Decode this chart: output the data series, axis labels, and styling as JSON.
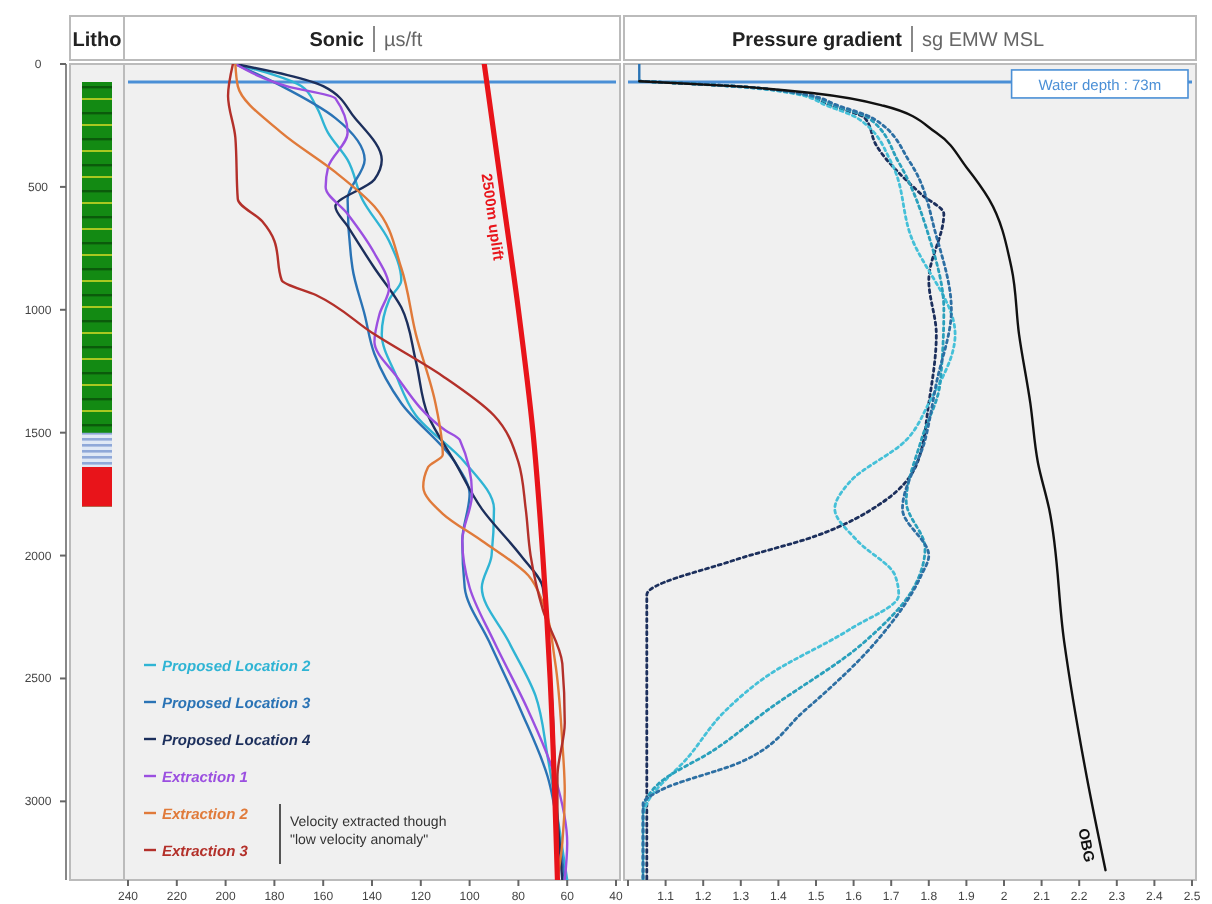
{
  "chart_data": [
    {
      "type": "other",
      "title": "Litho"
    },
    {
      "type": "line",
      "title": "Sonic",
      "xlabel": "µs/ft",
      "xlim": [
        240,
        40
      ],
      "xticks": [
        240,
        220,
        200,
        180,
        160,
        140,
        120,
        100,
        80,
        60,
        40
      ],
      "ylim": [
        3320,
        0
      ],
      "yticks": [
        0,
        500,
        1000,
        1500,
        2000,
        2500,
        3000
      ],
      "grid": false,
      "legend": "bottom left",
      "line_style": "solid",
      "marker": "none",
      "ref_lines": [
        {
          "axis": "y",
          "value": 73,
          "color": "#4a8fd6"
        }
      ],
      "annotations": [
        "Velocity extracted though\n\"low velocity anomaly\""
      ],
      "series": [
        {
          "name": "Proposed Location 2",
          "color": "#2fb4d4",
          "values": [
            0,
            90,
            170,
            280,
            390,
            550,
            720,
            880,
            960,
            1100,
            1270,
            1430,
            1620,
            1810,
            2000,
            2130,
            2350,
            2570,
            2820,
            3060,
            3320
          ],
          "x": [
            196,
            169,
            163,
            158,
            150,
            144,
            133,
            128,
            133,
            136,
            130,
            122,
            102,
            90,
            91,
            95,
            84,
            73,
            68,
            64,
            60
          ]
        },
        {
          "name": "Proposed Location 3",
          "color": "#2a73b5",
          "values": [
            0,
            90,
            220,
            390,
            550,
            830,
            1020,
            1180,
            1380,
            1620,
            1750,
            1940,
            2130,
            2350,
            2630,
            2900,
            3170,
            3320
          ],
          "x": [
            196,
            177,
            155,
            143,
            150,
            148,
            143,
            139,
            128,
            106,
            100,
            103,
            102,
            92,
            79,
            68,
            63,
            61
          ]
        },
        {
          "name": "Proposed Location 4",
          "color": "#1c2f5c",
          "values": [
            0,
            90,
            220,
            390,
            470,
            580,
            660,
            830,
            990,
            1210,
            1430,
            1620,
            1810,
            2000,
            2130,
            2350,
            2630,
            2900,
            3320
          ],
          "x": [
            196,
            160,
            147,
            136,
            139,
            155,
            150,
            139,
            128,
            122,
            117,
            106,
            95,
            79,
            70,
            68,
            66,
            65,
            62
          ]
        },
        {
          "name": "Extraction 1",
          "color": "#9b4fe0",
          "values": [
            0,
            90,
            140,
            280,
            420,
            500,
            610,
            770,
            910,
            1020,
            1130,
            1270,
            1490,
            1530,
            1750,
            1940,
            2130,
            2350,
            2630,
            2900,
            3170,
            3320
          ],
          "x": [
            196,
            175,
            155,
            150,
            158,
            159,
            150,
            139,
            133,
            137,
            139,
            130,
            110,
            104,
            99,
            103,
            100,
            90,
            76,
            65,
            60,
            61
          ]
        },
        {
          "name": "Extraction 2",
          "color": "#e07a3a",
          "values": [
            0,
            90,
            280,
            440,
            580,
            830,
            1100,
            1380,
            1590,
            1640,
            1720,
            1830,
            1940,
            2080,
            2190,
            2430,
            2760,
            2960,
            3170,
            3320
          ],
          "x": [
            196,
            195,
            177,
            155,
            139,
            128,
            122,
            114,
            111,
            117,
            119,
            111,
            95,
            76,
            70,
            65,
            62,
            61,
            62,
            64
          ]
        },
        {
          "name": "Extraction 3",
          "color": "#b3302a",
          "values": [
            0,
            130,
            300,
            550,
            640,
            720,
            880,
            940,
            1100,
            1270,
            1430,
            1620,
            1810,
            2000,
            2220,
            2440,
            2680,
            2900,
            3320
          ],
          "x": [
            197,
            199,
            196,
            195,
            185,
            180,
            177,
            163,
            139,
            111,
            90,
            80,
            77,
            75,
            70,
            62,
            61,
            64,
            64
          ]
        },
        {
          "name": "2500m uplift",
          "color": "#e8141a",
          "values": [
            0,
            500,
            1000,
            1500,
            2000,
            2500,
            3000,
            3320
          ],
          "x": [
            94,
            87,
            80,
            74,
            70,
            67,
            65,
            64
          ]
        }
      ]
    },
    {
      "type": "line",
      "title": "Pressure gradient",
      "xlabel": "sg EMW MSL",
      "xlim": [
        1.0,
        2.5
      ],
      "xticks": [
        {
          "value": 1.0,
          "label": null
        },
        1.1,
        1.2,
        1.3,
        1.4,
        1.5,
        1.6,
        1.7,
        1.8,
        1.9,
        2.0,
        2.1,
        2.2,
        2.3,
        2.4,
        2.5
      ],
      "ylim": [
        3320,
        0
      ],
      "tick_labels": "x",
      "grid": false,
      "legend": false,
      "marker": "none",
      "ref_lines": [
        {
          "axis": "y",
          "value": 73,
          "label": "Water depth : 73m",
          "color": "#4a8fd6"
        }
      ],
      "series": [
        {
          "color": "#2a73b5",
          "line_style": "solid",
          "values": [
            0,
            70
          ],
          "x": [
            1.03,
            1.03
          ]
        },
        {
          "color": "#1c2f5c",
          "line_style": "dotted",
          "values": [
            70,
            90,
            120,
            170,
            220,
            330,
            530,
            610,
            880,
            1100,
            1380,
            1620,
            1780,
            1920,
            2020,
            2160,
            3320
          ],
          "x": [
            1.03,
            1.28,
            1.45,
            1.54,
            1.63,
            1.66,
            1.78,
            1.84,
            1.8,
            1.82,
            1.8,
            1.77,
            1.68,
            1.5,
            1.28,
            1.05,
            1.05
          ]
        },
        {
          "color": "#45c0d8",
          "line_style": "dotted",
          "values": [
            70,
            90,
            120,
            170,
            220,
            400,
            690,
            1100,
            1380,
            1530,
            1700,
            1810,
            1940,
            2080,
            2160,
            2300,
            2490,
            2630,
            2820,
            3010,
            3060,
            3320
          ],
          "x": [
            1.03,
            1.27,
            1.44,
            1.53,
            1.61,
            1.7,
            1.75,
            1.87,
            1.8,
            1.74,
            1.59,
            1.55,
            1.61,
            1.71,
            1.72,
            1.59,
            1.37,
            1.26,
            1.16,
            1.05,
            1.04,
            1.04
          ]
        },
        {
          "color": "#2aa0bc",
          "line_style": "dotted",
          "values": [
            70,
            90,
            120,
            170,
            220,
            400,
            700,
            1000,
            1300,
            1530,
            1780,
            1970,
            2130,
            2350,
            2630,
            2790,
            2930,
            3040,
            3320
          ],
          "x": [
            1.03,
            1.28,
            1.45,
            1.55,
            1.64,
            1.72,
            1.8,
            1.84,
            1.83,
            1.78,
            1.74,
            1.79,
            1.76,
            1.63,
            1.37,
            1.23,
            1.08,
            1.04,
            1.04
          ]
        },
        {
          "color": "#2d6fa3",
          "line_style": "dotted",
          "values": [
            70,
            90,
            120,
            170,
            220,
            400,
            700,
            1000,
            1300,
            1530,
            1810,
            2000,
            2080,
            2350,
            2630,
            2840,
            2960,
            3010,
            3320
          ],
          "x": [
            1.03,
            1.28,
            1.46,
            1.56,
            1.65,
            1.75,
            1.82,
            1.86,
            1.82,
            1.79,
            1.73,
            1.8,
            1.78,
            1.66,
            1.47,
            1.3,
            1.08,
            1.04,
            1.04
          ]
        },
        {
          "name": "OBG",
          "color": "#111111",
          "line_style": "solid",
          "values": [
            70,
            90,
            120,
            170,
            280,
            420,
            550,
            830,
            1100,
            1380,
            1620,
            1810,
            2350,
            2900,
            3280
          ],
          "x": [
            1.03,
            1.28,
            1.5,
            1.68,
            1.82,
            1.9,
            1.96,
            2.02,
            2.04,
            2.07,
            2.09,
            2.12,
            2.16,
            2.22,
            2.27
          ]
        }
      ]
    }
  ]
}
